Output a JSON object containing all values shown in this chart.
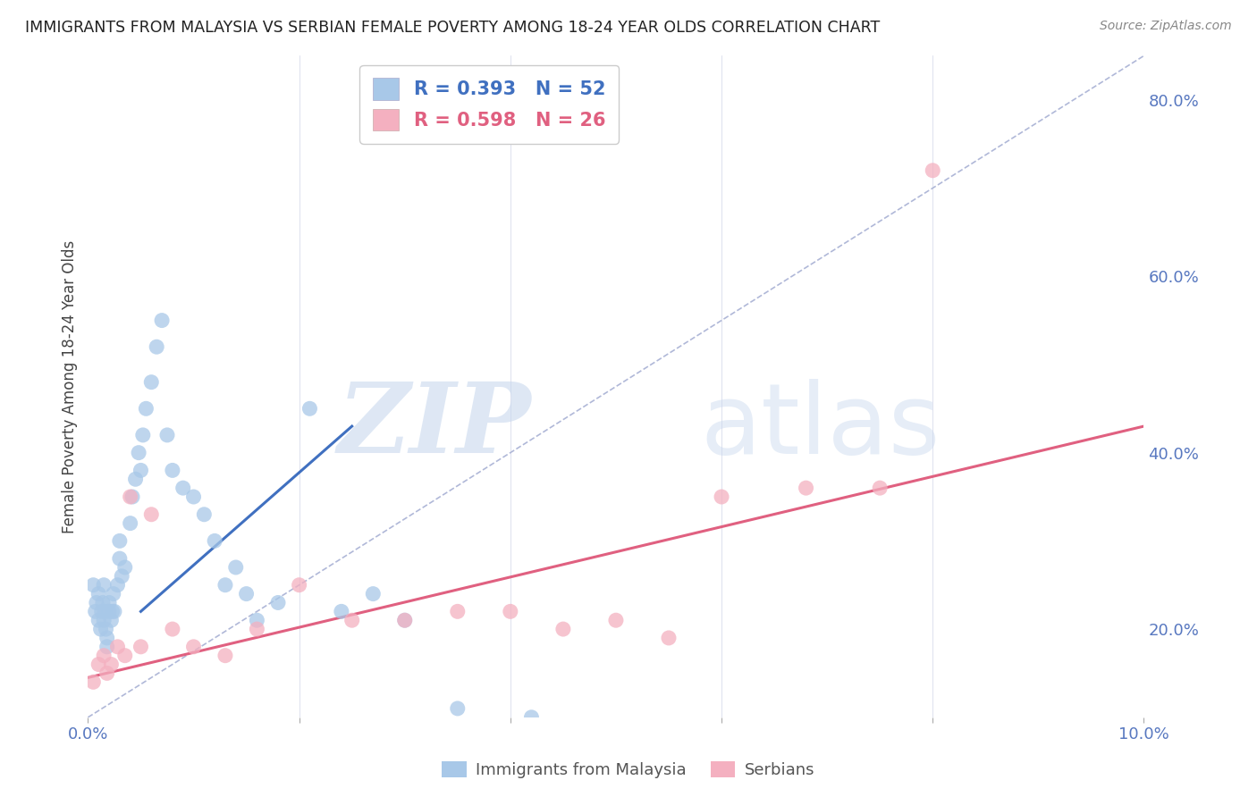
{
  "title": "IMMIGRANTS FROM MALAYSIA VS SERBIAN FEMALE POVERTY AMONG 18-24 YEAR OLDS CORRELATION CHART",
  "source": "Source: ZipAtlas.com",
  "ylabel": "Female Poverty Among 18-24 Year Olds",
  "xlim": [
    0.0,
    10.0
  ],
  "ylim": [
    10.0,
    85.0
  ],
  "blue_R": 0.393,
  "blue_N": 52,
  "pink_R": 0.598,
  "pink_N": 26,
  "blue_color": "#a8c8e8",
  "pink_color": "#f4b0c0",
  "blue_line_color": "#4070c0",
  "pink_line_color": "#e06080",
  "ref_line_color": "#b0b8d8",
  "legend_label_blue": "Immigrants from Malaysia",
  "legend_label_pink": "Serbians",
  "blue_scatter_x": [
    0.05,
    0.07,
    0.08,
    0.1,
    0.1,
    0.12,
    0.13,
    0.14,
    0.15,
    0.15,
    0.16,
    0.17,
    0.18,
    0.18,
    0.2,
    0.2,
    0.22,
    0.23,
    0.24,
    0.25,
    0.28,
    0.3,
    0.3,
    0.32,
    0.35,
    0.4,
    0.42,
    0.45,
    0.48,
    0.5,
    0.52,
    0.55,
    0.6,
    0.65,
    0.7,
    0.75,
    0.8,
    0.9,
    1.0,
    1.1,
    1.2,
    1.3,
    1.4,
    1.5,
    1.6,
    1.8,
    2.1,
    2.4,
    2.7,
    3.0,
    3.5,
    4.2
  ],
  "blue_scatter_y": [
    25,
    22,
    23,
    24,
    21,
    20,
    22,
    23,
    21,
    25,
    22,
    20,
    19,
    18,
    23,
    22,
    21,
    22,
    24,
    22,
    25,
    30,
    28,
    26,
    27,
    32,
    35,
    37,
    40,
    38,
    42,
    45,
    48,
    52,
    55,
    42,
    38,
    36,
    35,
    33,
    30,
    25,
    27,
    24,
    21,
    23,
    45,
    22,
    24,
    21,
    11,
    10
  ],
  "pink_scatter_x": [
    0.05,
    0.1,
    0.15,
    0.18,
    0.22,
    0.28,
    0.35,
    0.4,
    0.5,
    0.6,
    0.8,
    1.0,
    1.3,
    1.6,
    2.0,
    2.5,
    3.0,
    3.5,
    4.0,
    4.5,
    5.0,
    5.5,
    6.0,
    6.8,
    7.5,
    8.0
  ],
  "pink_scatter_y": [
    14,
    16,
    17,
    15,
    16,
    18,
    17,
    35,
    18,
    33,
    20,
    18,
    17,
    20,
    25,
    21,
    21,
    22,
    22,
    20,
    21,
    19,
    35,
    36,
    36,
    72
  ],
  "blue_line_x0": 0.5,
  "blue_line_y0": 22.0,
  "blue_line_x1": 2.5,
  "blue_line_y1": 43.0,
  "pink_line_x0": 0.0,
  "pink_line_y0": 14.5,
  "pink_line_x1": 10.0,
  "pink_line_y1": 43.0,
  "ref_line_x0": 0.0,
  "ref_line_y0": 10.0,
  "ref_line_x1": 10.0,
  "ref_line_y1": 85.0,
  "watermark_zip": "ZIP",
  "watermark_atlas": "atlas",
  "background_color": "#ffffff",
  "grid_color": "#d0d4e8",
  "title_color": "#222222",
  "axis_label_color": "#444444",
  "tick_color": "#5878c0"
}
